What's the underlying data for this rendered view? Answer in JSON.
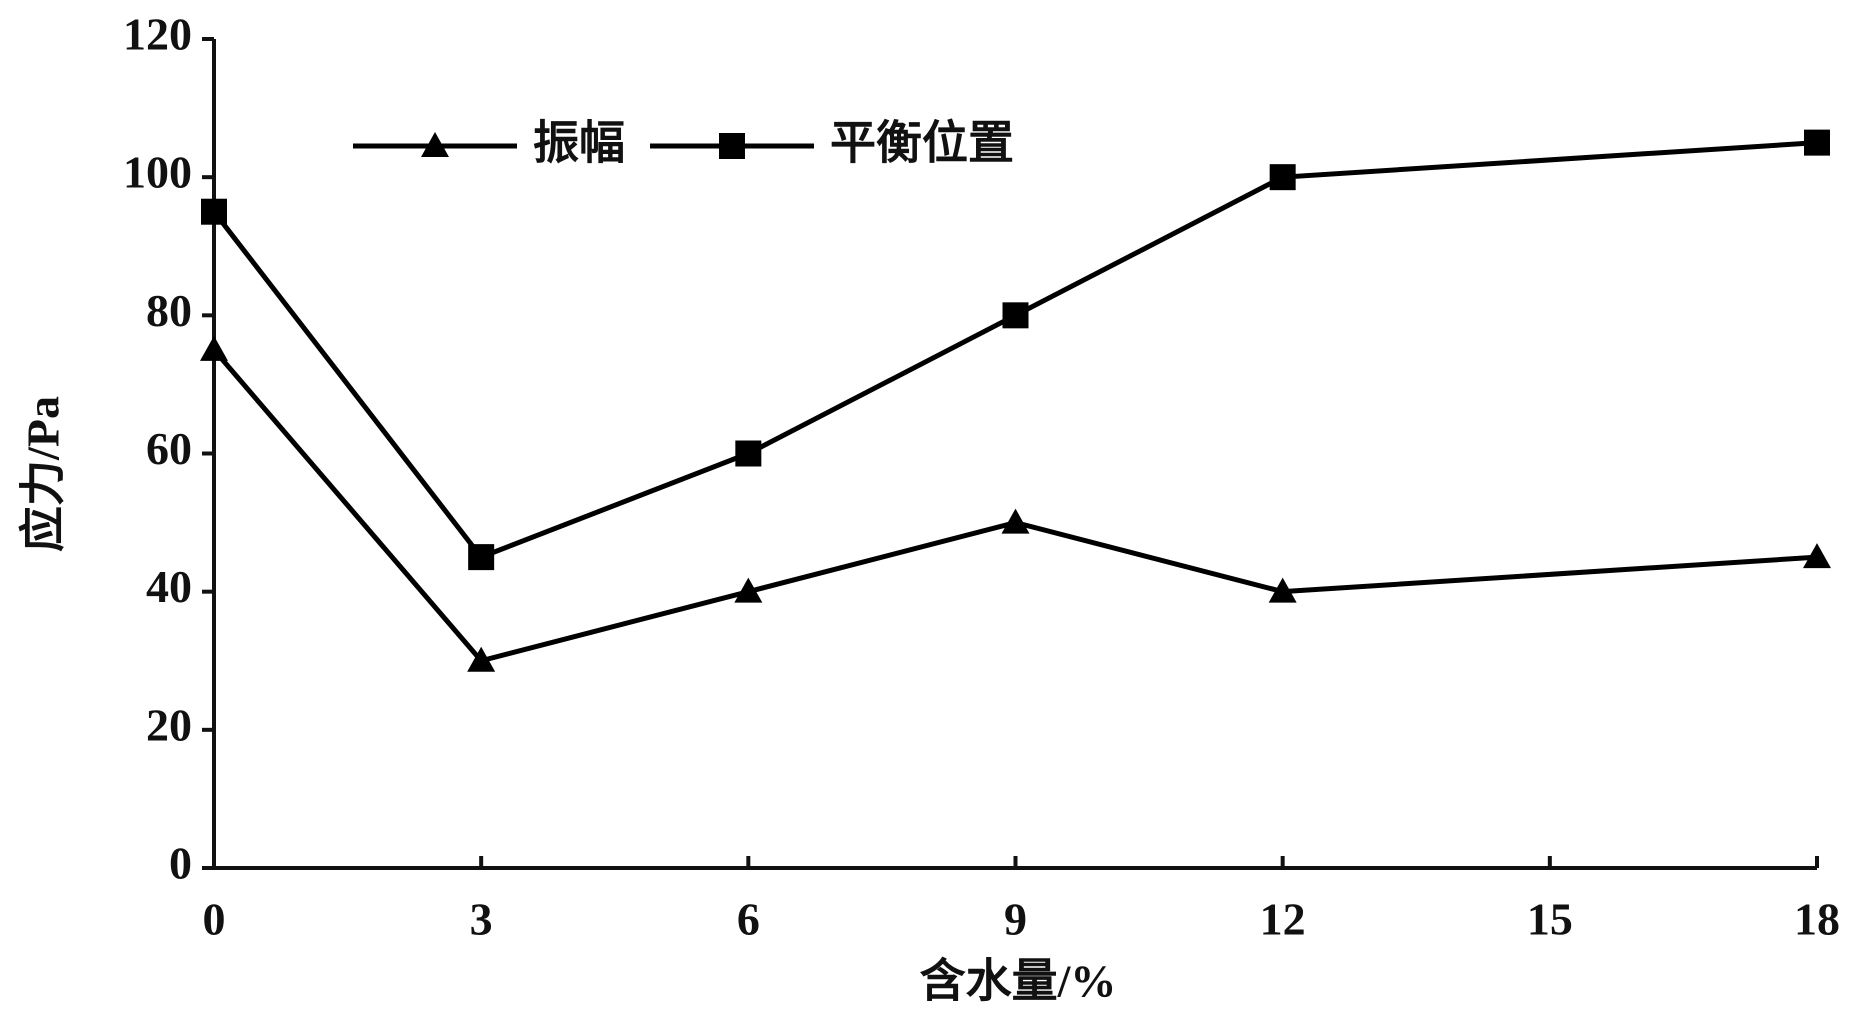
{
  "chart_data": {
    "type": "line",
    "x": [
      0,
      3,
      6,
      9,
      12,
      18
    ],
    "series": [
      {
        "name": "振幅",
        "color": "#000000",
        "marker": "triangle",
        "values": [
          75,
          30,
          40,
          50,
          40,
          45
        ]
      },
      {
        "name": "平衡位置",
        "color": "#000000",
        "marker": "square",
        "values": [
          95,
          45,
          60,
          80,
          100,
          105
        ]
      }
    ],
    "xlabel": "含水量/%",
    "ylabel": "应力/Pa",
    "xlim": [
      0,
      18
    ],
    "xticks": [
      0,
      3,
      6,
      9,
      12,
      15,
      18
    ],
    "ylim": [
      0,
      120
    ],
    "yticks": [
      0,
      20,
      40,
      60,
      80,
      100,
      120
    ],
    "grid": false,
    "legend": "top-left"
  }
}
